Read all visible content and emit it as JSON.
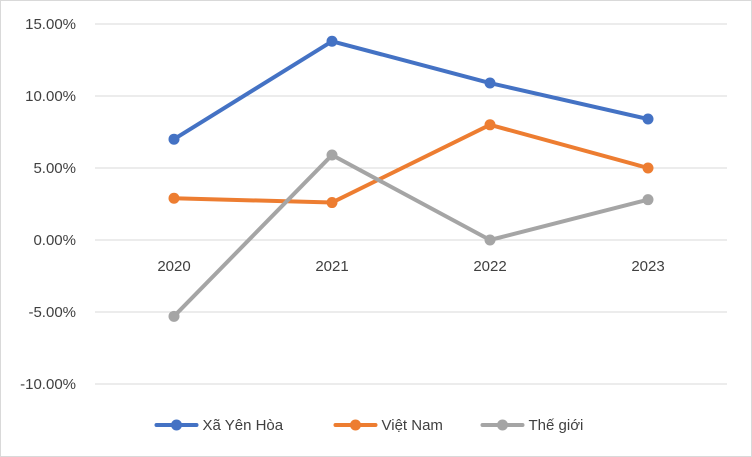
{
  "chart_data": {
    "type": "line",
    "title": "",
    "xlabel": "",
    "ylabel": "",
    "categories": [
      "2020",
      "2021",
      "2022",
      "2023"
    ],
    "ylim": [
      -0.1,
      0.15
    ],
    "yticks": [
      0.15,
      0.1,
      0.05,
      0.0,
      -0.05,
      -0.1
    ],
    "ytick_labels": [
      "15.00%",
      "10.00%",
      "5.00%",
      "0.00%",
      "-5.00%",
      "-10.00%"
    ],
    "grid": true,
    "legend_position": "bottom",
    "series": [
      {
        "name": "Xã Yên Hòa",
        "color": "#4472C4",
        "values": [
          0.07,
          0.138,
          0.109,
          0.084
        ]
      },
      {
        "name": "Việt Nam",
        "color": "#ED7D31",
        "values": [
          0.029,
          0.026,
          0.08,
          0.05
        ]
      },
      {
        "name": "Thế giới",
        "color": "#A5A5A5",
        "values": [
          -0.053,
          0.059,
          0.0,
          0.028
        ]
      }
    ]
  }
}
